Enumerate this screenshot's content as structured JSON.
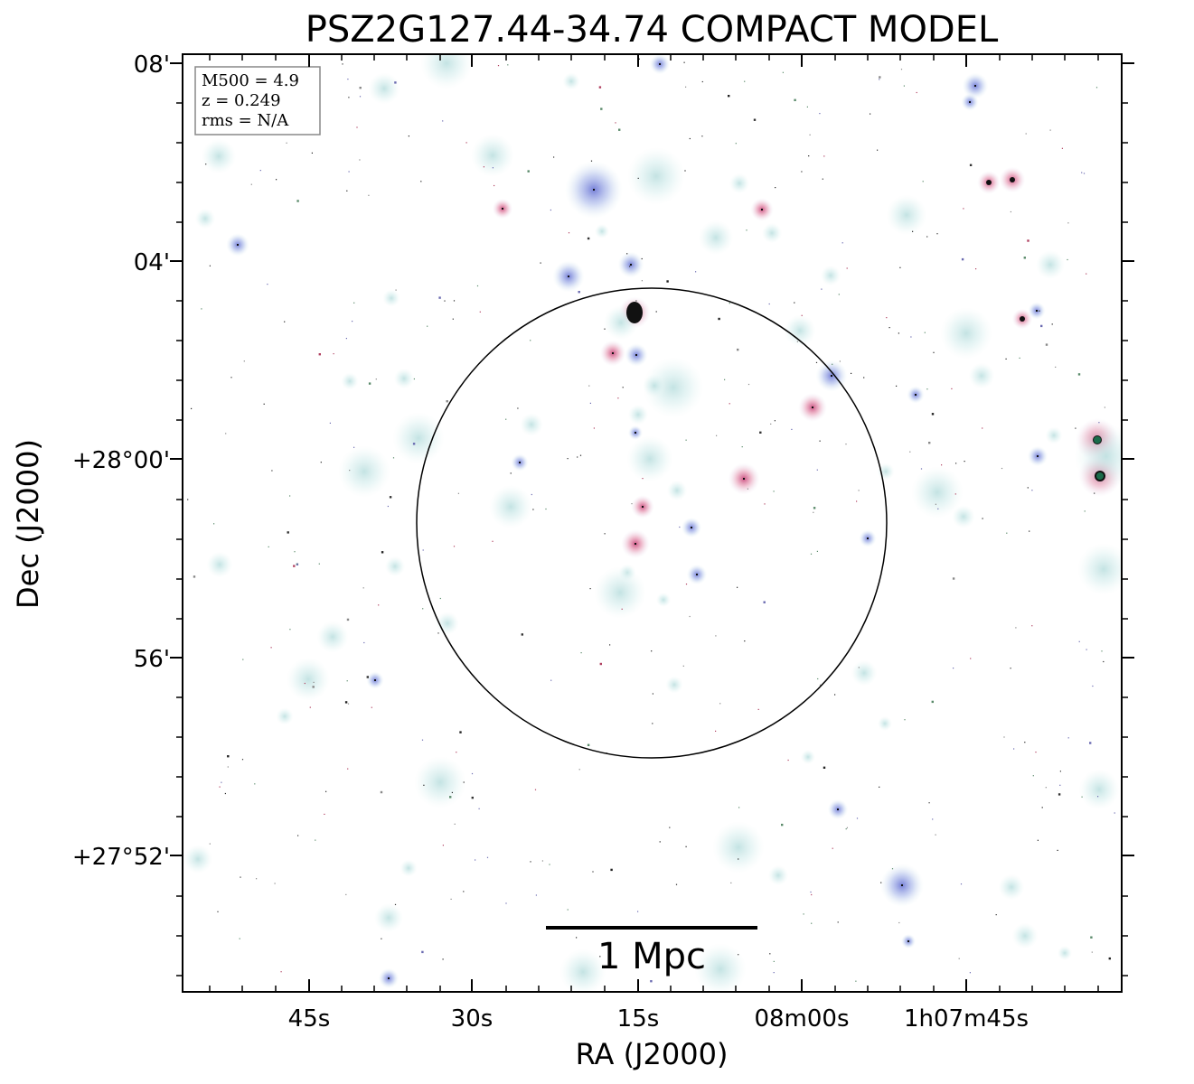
{
  "figure": {
    "title": "PSZ2G127.44-34.74 COMPACT MODEL",
    "xlabel": "RA (J2000)",
    "ylabel": "Dec (J2000)"
  },
  "info_box": {
    "lines": [
      "M500 = 4.9",
      "z = 0.249",
      "rms = N/A"
    ]
  },
  "axes": {
    "ra_ticks": [
      "45s",
      "30s",
      "15s",
      "08m00s",
      "1h07m45s"
    ],
    "dec_ticks": [
      "08'",
      "04'",
      "+28°00'",
      "56'",
      "+27°52'"
    ]
  },
  "scale_bar": {
    "label": "1 Mpc"
  },
  "colors": {
    "halo": "#cfe8e8",
    "blue_source": "#9aa2e6",
    "red_source": "#e58aa6",
    "pixel": "#111111"
  }
}
